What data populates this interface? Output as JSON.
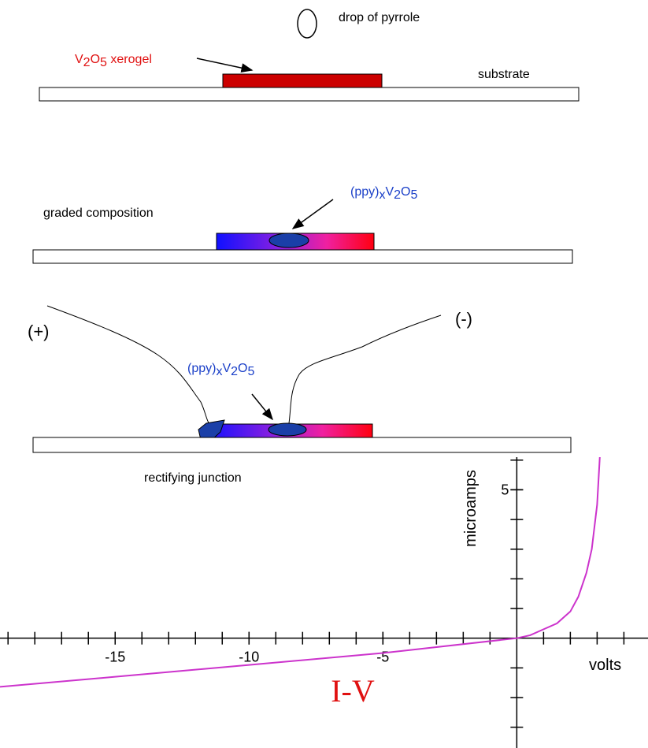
{
  "step1": {
    "drop_label": "drop of pyrrole",
    "film_label": "V2O5 xerogel",
    "substrate_label": "substrate"
  },
  "step2": {
    "region_label": "graded composition",
    "product_label": "(ppy)xV2O5"
  },
  "step3": {
    "plus_label": "(+)",
    "minus_label": "(-)",
    "product_label": "(ppy)xV2O5",
    "caption": "rectifying junction"
  },
  "chart_data": {
    "type": "line",
    "title": "I-V",
    "x_label": "volts",
    "y_label": "microamps",
    "xlim": [
      -19.3,
      4.9
    ],
    "ylim": [
      -3.7,
      6.1
    ],
    "xticks": [
      -15,
      -10,
      -5
    ],
    "yticks": [
      5
    ],
    "x": [
      -19.3,
      -15,
      -10,
      -5,
      0,
      0.5,
      1,
      1.5,
      2,
      2.3,
      2.6,
      2.8,
      3.0,
      3.1
    ],
    "series": [
      {
        "color": "#cc33cc",
        "values": [
          -1.64,
          -1.3,
          -0.9,
          -0.5,
          0,
          0.1,
          0.3,
          0.5,
          0.9,
          1.4,
          2.2,
          3.0,
          4.5,
          6.1
        ]
      }
    ]
  }
}
